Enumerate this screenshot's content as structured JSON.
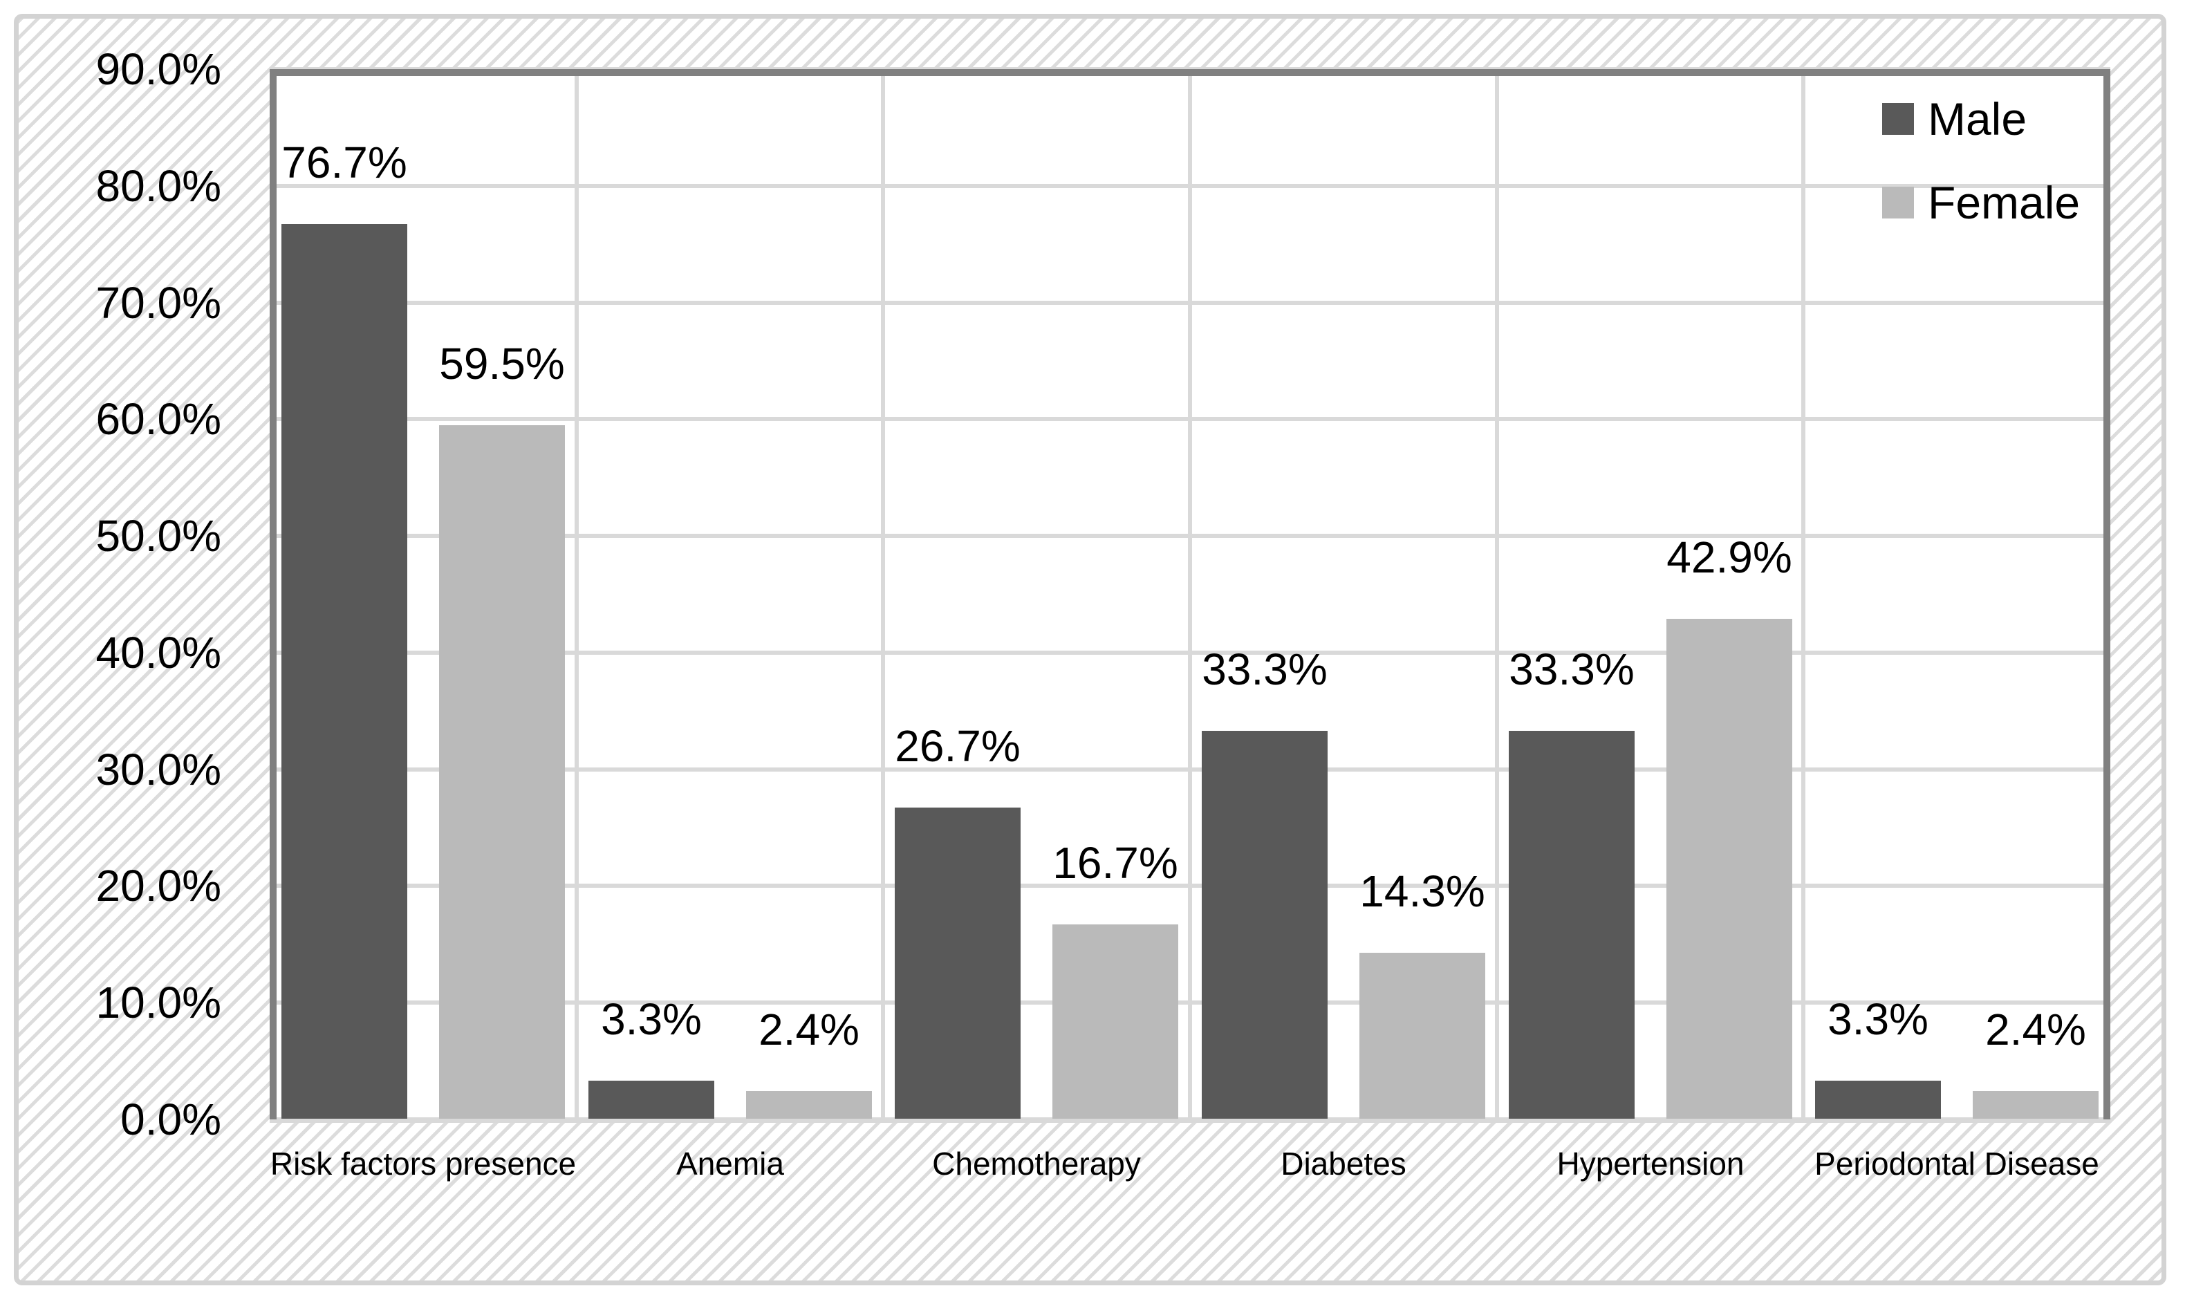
{
  "chart_data": {
    "type": "bar",
    "title": "",
    "xlabel": "",
    "ylabel": "",
    "categories": [
      "Risk factors presence",
      "Anemia",
      "Chemotherapy",
      "Diabetes",
      "Hypertension",
      "Periodontal Disease"
    ],
    "series": [
      {
        "name": "Male",
        "color": "#595959",
        "values": [
          76.7,
          3.3,
          26.7,
          33.3,
          33.3,
          3.3
        ],
        "data_labels": [
          "76.7%",
          "3.3%",
          "26.7%",
          "33.3%",
          "33.3%",
          "3.3%"
        ]
      },
      {
        "name": "Female",
        "color": "#bababa",
        "values": [
          59.5,
          2.4,
          16.7,
          14.3,
          42.9,
          2.4
        ],
        "data_labels": [
          "59.5%",
          "2.4%",
          "16.7%",
          "14.3%",
          "42.9%",
          "2.4%"
        ]
      }
    ],
    "ylim": [
      0,
      90
    ],
    "ytick_step": 10,
    "ytick_labels": [
      "0.0%",
      "10.0%",
      "20.0%",
      "30.0%",
      "40.0%",
      "50.0%",
      "60.0%",
      "70.0%",
      "80.0%",
      "90.0%"
    ],
    "grid": true,
    "vertical_grid": true,
    "legend_position": "top-right",
    "legend": [
      {
        "label": "Male",
        "color": "#595959"
      },
      {
        "label": "Female",
        "color": "#bababa"
      }
    ]
  },
  "colors": {
    "male_bar": "#595959",
    "female_bar": "#bababa",
    "gridline": "#d9d9d9",
    "plot_border": "#808080",
    "outer_frame": "#d3d3d3",
    "hatch_stripe": "#dcdcdc",
    "text": "#000000",
    "plot_background": "#ffffff"
  }
}
